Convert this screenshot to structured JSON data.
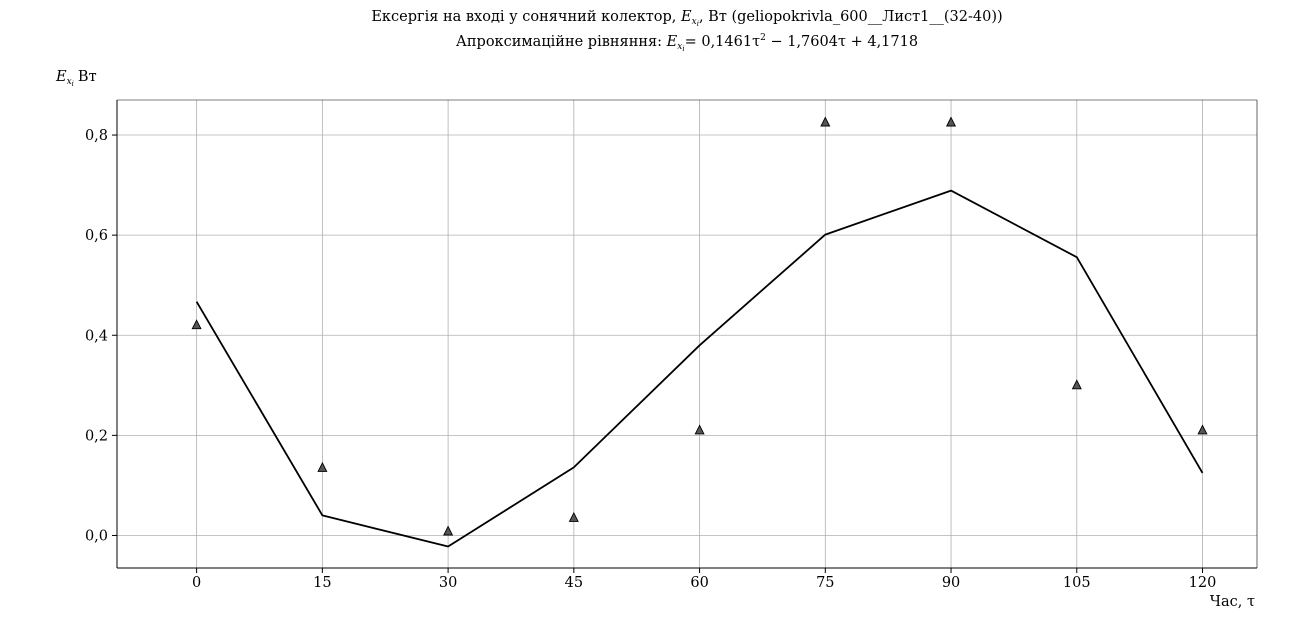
{
  "chart_data": {
    "type": "scatter",
    "title_line1": "Ексергія на вході у сонячний колектор, E_xi, Вт (geliopokrivla_600__Лист1__(32-40))",
    "title_line1_parts": {
      "prefix": "Ексергія на вході у сонячний колектор, ",
      "symbol": "E",
      "sub": "x",
      "subsub": "i",
      "suffix": ", Вт (geliopokrivla_600__Лист1__(32-40))"
    },
    "title_line2": "Апроксимаційне рівняння: E_xi = 0,1461τ² − 1,7604τ + 4,1718",
    "title_line2_parts": {
      "prefix": "Апроксимаційне рівняння: ",
      "equation": "= 0,1461τ",
      "power": "2",
      "rest": " − 1,7604τ + 4,1718"
    },
    "ylabel": "E_xi Вт",
    "ylabel_unit": "Вт",
    "xlabel": "Час, τ",
    "xlim": [
      -9.5,
      126.5
    ],
    "ylim": [
      -0.065,
      0.87
    ],
    "xticks": [
      0,
      15,
      30,
      45,
      60,
      75,
      90,
      105,
      120
    ],
    "xtick_labels": [
      "0",
      "15",
      "30",
      "45",
      "60",
      "75",
      "90",
      "105",
      "120"
    ],
    "yticks": [
      0.0,
      0.2,
      0.4,
      0.6,
      0.8
    ],
    "ytick_labels": [
      "0,0",
      "0,2",
      "0,4",
      "0,6",
      "0,8"
    ],
    "grid": true,
    "series": [
      {
        "kind": "markers",
        "marker": "triangle",
        "x": [
          0,
          15,
          30,
          45,
          60,
          75,
          90,
          105,
          120
        ],
        "values": [
          0.42,
          0.135,
          0.008,
          0.035,
          0.21,
          0.825,
          0.825,
          0.3,
          0.21
        ]
      },
      {
        "kind": "line",
        "x": [
          0,
          15,
          30,
          45,
          60,
          75,
          90,
          105,
          120
        ],
        "values": [
          0.467,
          0.04,
          -0.022,
          0.136,
          0.38,
          0.601,
          0.689,
          0.556,
          0.125
        ]
      }
    ],
    "colors": {
      "line": "#000000",
      "marker_fill": "#555555",
      "marker_edge": "#000000",
      "grid": "#b0b0b0"
    }
  }
}
